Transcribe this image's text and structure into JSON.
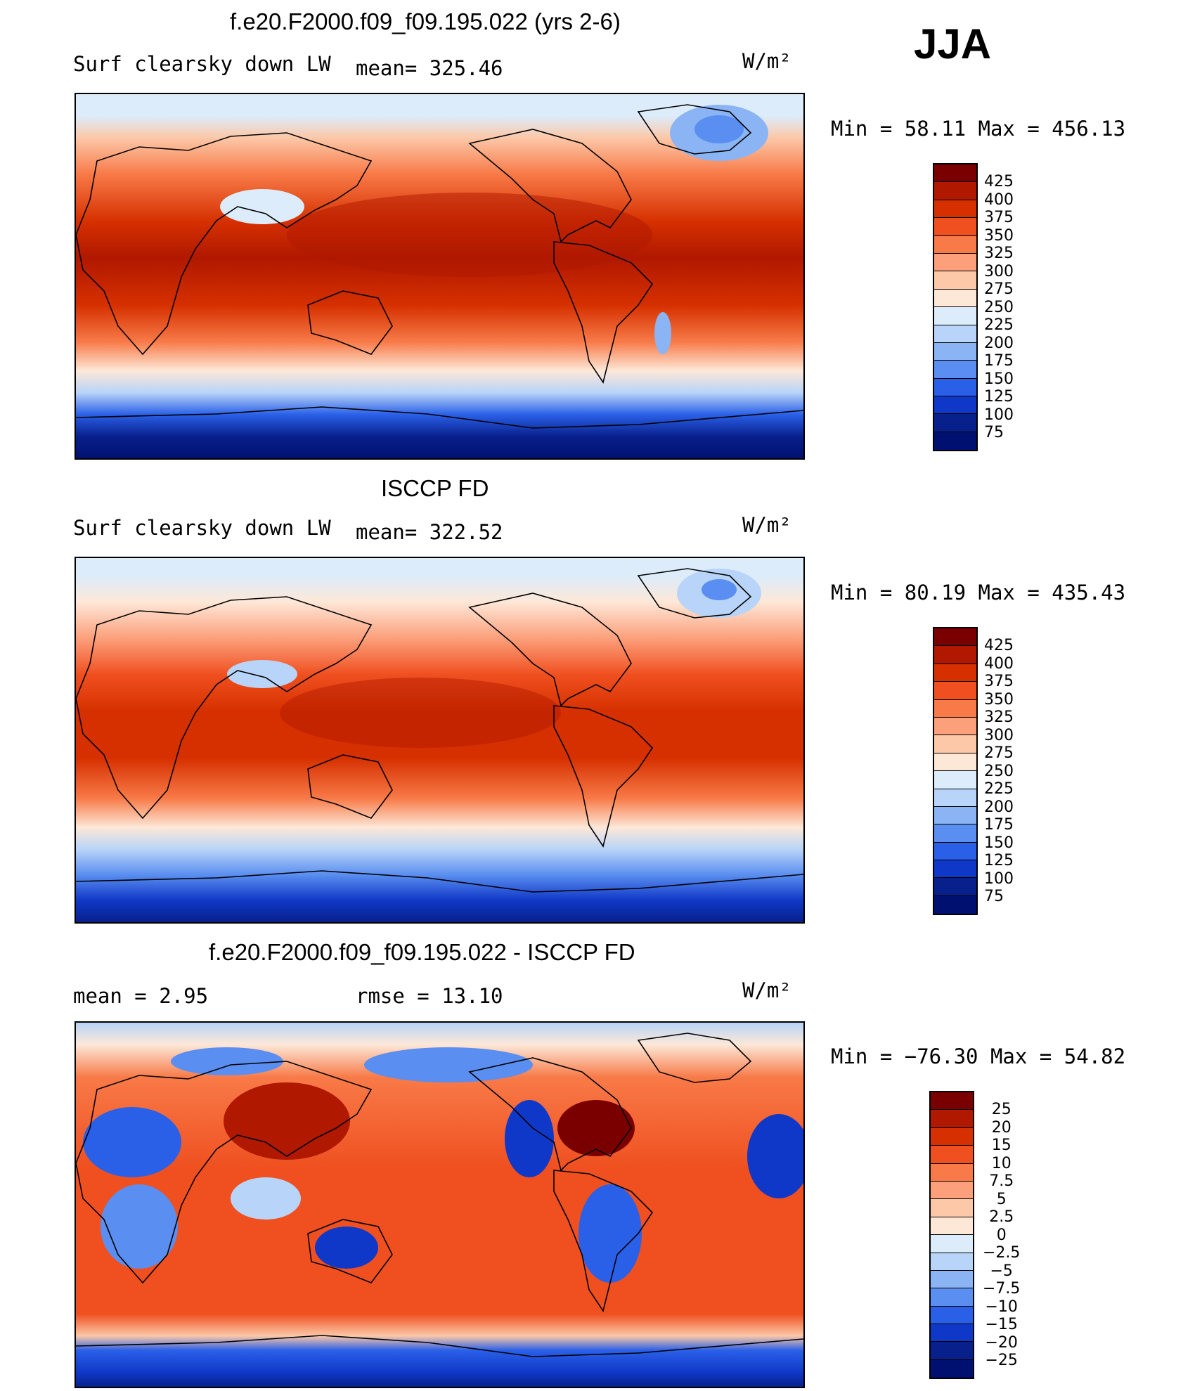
{
  "season": "JJA",
  "panels": [
    {
      "title": "f.e20.F2000.f09_f09.195.022 (yrs 2-6)",
      "left_label": "Surf clearsky down LW",
      "center_label": "mean= 325.46",
      "units": "W/m²",
      "stats": "Min =   58.11  Max  =  456.13",
      "levels": [
        "425",
        "400",
        "375",
        "350",
        "325",
        "300",
        "275",
        "250",
        "225",
        "200",
        "175",
        "150",
        "125",
        "100",
        "75"
      ]
    },
    {
      "title": "ISCCP FD",
      "left_label": "Surf clearsky down LW",
      "center_label": "mean= 322.52",
      "units": "W/m²",
      "stats": "Min =   80.19  Max  =  435.43",
      "levels": [
        "425",
        "400",
        "375",
        "350",
        "325",
        "300",
        "275",
        "250",
        "225",
        "200",
        "175",
        "150",
        "125",
        "100",
        "75"
      ]
    },
    {
      "title": "f.e20.F2000.f09_f09.195.022 - ISCCP FD",
      "left_label": "mean =    2.95",
      "center_label": "rmse =   13.10",
      "units": "W/m²",
      "stats": "Min = −76.30  Max =   54.82",
      "levels": [
        "25",
        "20",
        "15",
        "10",
        "7.5",
        "5",
        "2.5",
        "0",
        "−2.5",
        "−5",
        "−7.5",
        "−10",
        "−15",
        "−20",
        "−25"
      ]
    }
  ],
  "colors": {
    "abs_scale": [
      "#7a0000",
      "#b01800",
      "#d63000",
      "#f05020",
      "#f87a48",
      "#fca07c",
      "#fcc8a8",
      "#fde8d8",
      "#dcecfa",
      "#b8d4f8",
      "#8ab4f4",
      "#5a8ef0",
      "#2a60e8",
      "#1038c8",
      "#08208c",
      "#001070"
    ],
    "diff_scale": [
      "#7a0000",
      "#b01800",
      "#d63000",
      "#f05020",
      "#f87a48",
      "#fca07c",
      "#fcc8a8",
      "#fde8d8",
      "#dcecfa",
      "#b8d4f8",
      "#8ab4f4",
      "#5a8ef0",
      "#2a60e8",
      "#1038c8",
      "#08208c",
      "#001070"
    ]
  }
}
